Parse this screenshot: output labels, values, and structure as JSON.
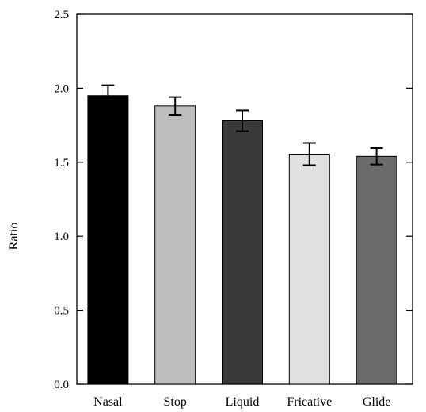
{
  "chart_data": {
    "type": "bar",
    "title": "",
    "xlabel": "",
    "ylabel": "Ratio",
    "ylim": [
      0,
      2.5
    ],
    "yticks": [
      "0.0",
      "0.5",
      "1.0",
      "1.5",
      "2.0",
      "2.5"
    ],
    "categories": [
      "Nasal",
      "Stop",
      "Liquid",
      "Fricative",
      "Glide"
    ],
    "values": [
      1.95,
      1.88,
      1.78,
      1.555,
      1.54
    ],
    "errors": [
      0.07,
      0.06,
      0.07,
      0.075,
      0.055
    ],
    "colors": [
      "#000000",
      "#bdbdbd",
      "#3a3a3a",
      "#e0e0e0",
      "#6b6b6b"
    ],
    "grid": false,
    "legend": false
  }
}
